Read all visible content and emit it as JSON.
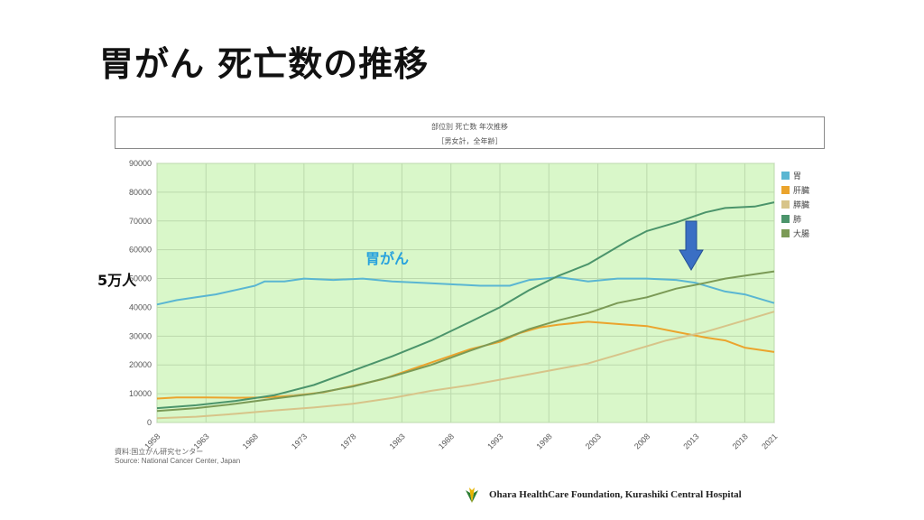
{
  "slide": {
    "title": "胃がん 死亡数の推移",
    "left_label": "5万人",
    "series_annotation": "胃がん",
    "source_line1": "資料:国立がん研究センター",
    "source_line2": "Source: National Cancer Center, Japan",
    "footer": "Ohara HealthCare Foundation,  Kurashiki Central Hospital",
    "arrow_color": "#3a6fc4",
    "annotation_color": "#29a3dd"
  },
  "chart_data": {
    "type": "line",
    "title": "部位別 死亡数 年次推移",
    "subtitle": "［男女計，全年齢］",
    "xlabel": "",
    "ylabel": "",
    "xlim": [
      1958,
      2021
    ],
    "ylim": [
      0,
      90000
    ],
    "x_ticks": [
      1958,
      1963,
      1968,
      1973,
      1978,
      1983,
      1988,
      1993,
      1998,
      2003,
      2008,
      2013,
      2018,
      2021
    ],
    "y_ticks": [
      0,
      10000,
      20000,
      30000,
      40000,
      50000,
      60000,
      70000,
      80000,
      90000
    ],
    "grid": true,
    "plot_background": "#d9f7c9",
    "legend_position": "right",
    "series": [
      {
        "name": "胃",
        "color": "#5ab6d2",
        "points": [
          [
            1958,
            41000
          ],
          [
            1960,
            42500
          ],
          [
            1962,
            43500
          ],
          [
            1964,
            44500
          ],
          [
            1966,
            46000
          ],
          [
            1968,
            47500
          ],
          [
            1969,
            49000
          ],
          [
            1971,
            49000
          ],
          [
            1973,
            50000
          ],
          [
            1976,
            49500
          ],
          [
            1979,
            50000
          ],
          [
            1982,
            49000
          ],
          [
            1985,
            48500
          ],
          [
            1988,
            48000
          ],
          [
            1991,
            47500
          ],
          [
            1994,
            47500
          ],
          [
            1996,
            49500
          ],
          [
            1999,
            50500
          ],
          [
            2002,
            49000
          ],
          [
            2005,
            50000
          ],
          [
            2008,
            50000
          ],
          [
            2011,
            49500
          ],
          [
            2013,
            48500
          ],
          [
            2016,
            45500
          ],
          [
            2018,
            44500
          ],
          [
            2021,
            41500
          ]
        ]
      },
      {
        "name": "肝臓",
        "color": "#eba42d",
        "points": [
          [
            1958,
            8300
          ],
          [
            1960,
            8700
          ],
          [
            1963,
            8700
          ],
          [
            1966,
            8600
          ],
          [
            1969,
            8700
          ],
          [
            1972,
            9300
          ],
          [
            1975,
            10500
          ],
          [
            1978,
            12700
          ],
          [
            1981,
            15000
          ],
          [
            1984,
            18500
          ],
          [
            1987,
            22000
          ],
          [
            1990,
            25500
          ],
          [
            1993,
            28000
          ],
          [
            1995,
            31000
          ],
          [
            1997,
            33000
          ],
          [
            1999,
            34000
          ],
          [
            2002,
            35000
          ],
          [
            2005,
            34200
          ],
          [
            2008,
            33500
          ],
          [
            2011,
            31500
          ],
          [
            2014,
            29500
          ],
          [
            2016,
            28500
          ],
          [
            2018,
            26000
          ],
          [
            2021,
            24500
          ]
        ]
      },
      {
        "name": "膵臓",
        "color": "#d7c489",
        "points": [
          [
            1958,
            1500
          ],
          [
            1962,
            2000
          ],
          [
            1966,
            3000
          ],
          [
            1970,
            4200
          ],
          [
            1974,
            5200
          ],
          [
            1978,
            6500
          ],
          [
            1982,
            8500
          ],
          [
            1986,
            11000
          ],
          [
            1990,
            13000
          ],
          [
            1994,
            15500
          ],
          [
            1998,
            18000
          ],
          [
            2002,
            20500
          ],
          [
            2006,
            24500
          ],
          [
            2010,
            28500
          ],
          [
            2014,
            31500
          ],
          [
            2018,
            35500
          ],
          [
            2021,
            38500
          ]
        ]
      },
      {
        "name": "肺",
        "color": "#4b946b",
        "points": [
          [
            1958,
            5000
          ],
          [
            1962,
            6000
          ],
          [
            1966,
            7500
          ],
          [
            1970,
            9500
          ],
          [
            1974,
            13000
          ],
          [
            1978,
            18000
          ],
          [
            1982,
            23000
          ],
          [
            1986,
            28500
          ],
          [
            1990,
            35000
          ],
          [
            1993,
            40000
          ],
          [
            1996,
            46000
          ],
          [
            1999,
            51000
          ],
          [
            2002,
            55000
          ],
          [
            2004,
            59000
          ],
          [
            2006,
            63000
          ],
          [
            2008,
            66500
          ],
          [
            2011,
            69500
          ],
          [
            2014,
            73000
          ],
          [
            2016,
            74500
          ],
          [
            2019,
            75000
          ],
          [
            2021,
            76500
          ]
        ]
      },
      {
        "name": "大腸",
        "color": "#7b9a56",
        "points": [
          [
            1958,
            4000
          ],
          [
            1962,
            5000
          ],
          [
            1966,
            6500
          ],
          [
            1970,
            8300
          ],
          [
            1974,
            10000
          ],
          [
            1978,
            12500
          ],
          [
            1982,
            16000
          ],
          [
            1986,
            20000
          ],
          [
            1990,
            25000
          ],
          [
            1993,
            28500
          ],
          [
            1996,
            32500
          ],
          [
            1999,
            35500
          ],
          [
            2002,
            38000
          ],
          [
            2005,
            41500
          ],
          [
            2008,
            43500
          ],
          [
            2011,
            46500
          ],
          [
            2014,
            48500
          ],
          [
            2016,
            50000
          ],
          [
            2018,
            51000
          ],
          [
            2021,
            52500
          ]
        ]
      }
    ]
  }
}
